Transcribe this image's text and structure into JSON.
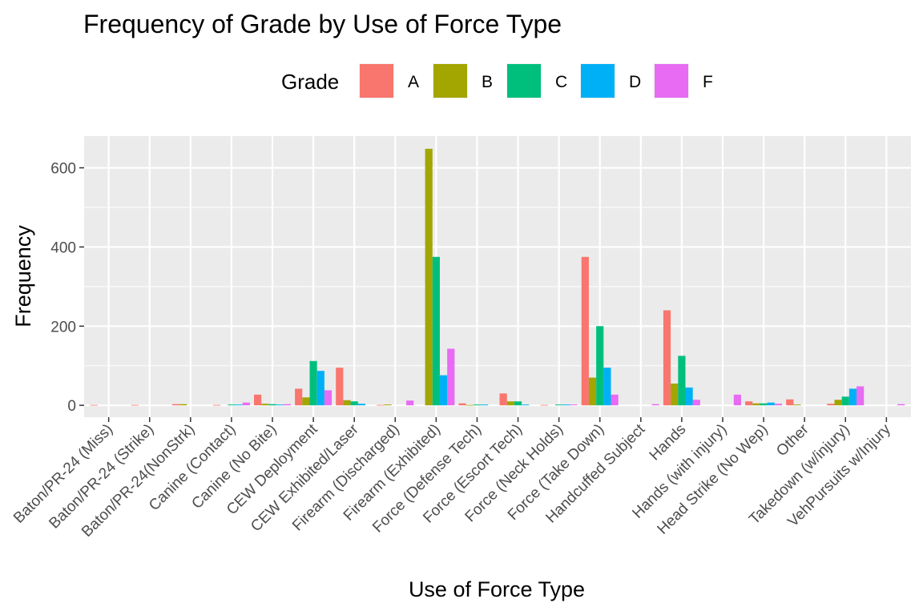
{
  "chart_data": {
    "type": "bar",
    "title": "Frequency of Grade by Use of Force Type",
    "xlabel": "Use of Force Type",
    "ylabel": "Frequency",
    "ylim": [
      -30,
      680
    ],
    "yticks": [
      0,
      200,
      400,
      600
    ],
    "grid": true,
    "legend": {
      "title": "Grade",
      "position": "top"
    },
    "categories": [
      "Baton/PR-24 (Miss)",
      "Baton/PR-24 (Strike)",
      "Baton/PR-24(NonStrk)",
      "Canine (Contact)",
      "Canine (No Bite)",
      "CEW Deployment",
      "CEW Exhibited/Laser",
      "Firearm (Discharged)",
      "Firearm (Exhibited)",
      "Force (Defense Tech)",
      "Force (Escort Tech)",
      "Force (Neck Holds)",
      "Force (Take Down)",
      "Handcuffed Subject",
      "Hands",
      "Hands (with injury)",
      "Head Strike (No Wep)",
      "Other",
      "Takedown (w/injury)",
      "VehPursuits w/Injury"
    ],
    "series": [
      {
        "name": "A",
        "color": "#F8766D",
        "values": [
          1,
          1,
          3,
          1,
          27,
          42,
          95,
          1,
          0,
          5,
          30,
          1,
          375,
          0,
          240,
          0,
          10,
          15,
          4,
          0
        ]
      },
      {
        "name": "B",
        "color": "#A3A500",
        "values": [
          0,
          0,
          3,
          0,
          4,
          20,
          13,
          2,
          648,
          1,
          10,
          0,
          70,
          0,
          55,
          0,
          5,
          2,
          14,
          0
        ]
      },
      {
        "name": "C",
        "color": "#00BF7D",
        "values": [
          0,
          0,
          0,
          2,
          3,
          112,
          10,
          0,
          375,
          2,
          10,
          2,
          200,
          0,
          125,
          0,
          5,
          0,
          22,
          0
        ]
      },
      {
        "name": "D",
        "color": "#00B0F6",
        "values": [
          0,
          0,
          0,
          2,
          2,
          87,
          4,
          0,
          76,
          2,
          2,
          2,
          95,
          0,
          45,
          0,
          7,
          0,
          42,
          0
        ]
      },
      {
        "name": "F",
        "color": "#E76BF3",
        "values": [
          0,
          0,
          0,
          7,
          3,
          38,
          0,
          12,
          143,
          0,
          0,
          2,
          27,
          3,
          14,
          27,
          4,
          0,
          48,
          3
        ]
      }
    ],
    "panel_background": "#EBEBEB",
    "grid_color": "#FFFFFF"
  }
}
